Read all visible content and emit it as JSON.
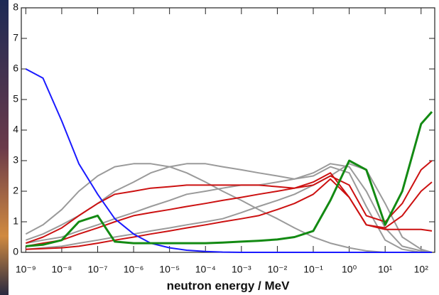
{
  "chart_data": {
    "type": "line",
    "x_label": "neutron energy / MeV",
    "x": [
      1e-09,
      3e-09,
      1e-08,
      3e-08,
      1e-07,
      3e-07,
      1e-06,
      3e-06,
      1e-05,
      3e-05,
      0.0001,
      0.0003,
      0.001,
      0.003,
      0.01,
      0.03,
      0.1,
      0.3,
      1,
      3,
      10,
      30,
      100,
      200
    ],
    "x_log": true,
    "xlim": [
      7.5e-10,
      240
    ],
    "xticks": [
      {
        "value": 1e-09,
        "label": "10⁻⁹"
      },
      {
        "value": 1e-08,
        "label": "10⁻⁸"
      },
      {
        "value": 1e-07,
        "label": "10⁻⁷"
      },
      {
        "value": 1e-06,
        "label": "10⁻⁶"
      },
      {
        "value": 1e-05,
        "label": "10⁻⁵"
      },
      {
        "value": 0.0001,
        "label": "10⁻⁴"
      },
      {
        "value": 0.001,
        "label": "10⁻³"
      },
      {
        "value": 0.01,
        "label": "10⁻²"
      },
      {
        "value": 0.1,
        "label": "10⁻¹"
      },
      {
        "value": 1,
        "label": "10⁰"
      },
      {
        "value": 10,
        "label": "10¹"
      },
      {
        "value": 100,
        "label": "10²"
      }
    ],
    "ylim": [
      0,
      8
    ],
    "yticks": [
      0,
      1,
      2,
      3,
      4,
      5,
      6,
      7,
      8
    ],
    "series": [
      {
        "color": "#9a9a9a",
        "values": [
          0.6,
          0.9,
          1.4,
          2.0,
          2.5,
          2.8,
          2.9,
          2.9,
          2.8,
          2.6,
          2.3,
          2.0,
          1.7,
          1.4,
          1.1,
          0.8,
          0.5,
          0.3,
          0.15,
          0.05,
          0,
          0,
          0,
          0
        ]
      },
      {
        "color": "#9a9a9a",
        "values": [
          0.4,
          0.6,
          0.9,
          1.2,
          1.6,
          2.0,
          2.3,
          2.6,
          2.8,
          2.9,
          2.9,
          2.8,
          2.7,
          2.6,
          2.5,
          2.4,
          2.5,
          2.8,
          2.6,
          1.5,
          0.4,
          0.1,
          0,
          0
        ]
      },
      {
        "color": "#9a9a9a",
        "values": [
          0.3,
          0.4,
          0.5,
          0.7,
          0.9,
          1.1,
          1.3,
          1.5,
          1.7,
          1.9,
          2.0,
          2.1,
          2.2,
          2.2,
          2.3,
          2.4,
          2.6,
          2.9,
          2.8,
          2.0,
          0.8,
          0.2,
          0.05,
          0
        ]
      },
      {
        "color": "#9a9a9a",
        "values": [
          0.1,
          0.15,
          0.2,
          0.3,
          0.4,
          0.5,
          0.6,
          0.7,
          0.8,
          0.9,
          1.0,
          1.1,
          1.3,
          1.5,
          1.7,
          1.9,
          2.2,
          2.5,
          2.9,
          2.7,
          1.6,
          0.5,
          0.1,
          0
        ]
      },
      {
        "color": "#cc1111",
        "values": [
          0.3,
          0.5,
          0.8,
          1.2,
          1.6,
          1.9,
          2.0,
          2.1,
          2.15,
          2.2,
          2.2,
          2.2,
          2.2,
          2.2,
          2.15,
          2.1,
          2.2,
          2.5,
          2.2,
          1.2,
          1.0,
          1.6,
          2.7,
          3.0
        ]
      },
      {
        "color": "#cc1111",
        "values": [
          0.2,
          0.3,
          0.4,
          0.6,
          0.8,
          1.0,
          1.2,
          1.3,
          1.4,
          1.5,
          1.6,
          1.7,
          1.8,
          1.9,
          2.0,
          2.1,
          2.3,
          2.6,
          1.8,
          0.9,
          0.8,
          1.2,
          2.0,
          2.3
        ]
      },
      {
        "color": "#cc1111",
        "values": [
          0.1,
          0.12,
          0.15,
          0.2,
          0.3,
          0.4,
          0.5,
          0.6,
          0.7,
          0.8,
          0.9,
          1.0,
          1.1,
          1.2,
          1.4,
          1.6,
          1.9,
          2.4,
          1.8,
          0.9,
          0.75,
          0.75,
          0.75,
          0.7
        ]
      },
      {
        "color": "#1a1aff",
        "values": [
          6,
          5.7,
          4.3,
          2.9,
          1.9,
          1.1,
          0.6,
          0.3,
          0.15,
          0.07,
          0.03,
          0.01,
          0,
          0,
          0,
          0,
          0,
          0,
          0,
          0,
          0,
          0,
          0,
          0
        ]
      },
      {
        "color": "#138a13",
        "values": [
          0.2,
          0.25,
          0.4,
          1.0,
          1.2,
          0.35,
          0.3,
          0.3,
          0.3,
          0.3,
          0.3,
          0.32,
          0.35,
          0.38,
          0.42,
          0.5,
          0.7,
          1.7,
          3.0,
          2.7,
          0.9,
          2.0,
          4.2,
          4.6
        ]
      }
    ]
  }
}
